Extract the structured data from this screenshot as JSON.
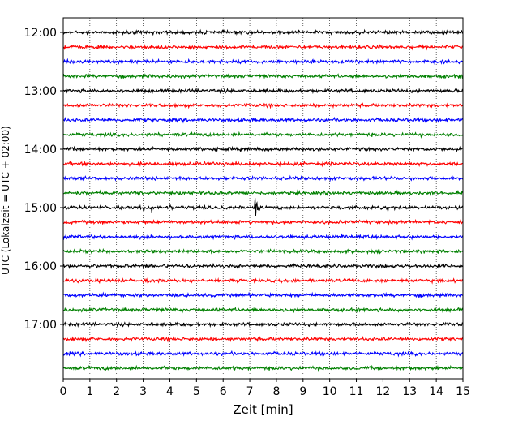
{
  "chart_data": {
    "type": "line",
    "subtype": "helicorder",
    "xlabel": "Zeit  [min]",
    "ylabel": "UTC (Lokalzeit = UTC + 02:00)",
    "xlim": [
      0,
      15
    ],
    "x_ticks": [
      0,
      1,
      2,
      3,
      4,
      5,
      6,
      7,
      8,
      9,
      10,
      11,
      12,
      13,
      14,
      15
    ],
    "y_tick_labels": [
      "12:00",
      "13:00",
      "14:00",
      "15:00",
      "16:00",
      "17:00"
    ],
    "vertical_grid": true,
    "grid_style": "dotted",
    "minutes_per_line": 15,
    "trace_colors": [
      "#000000",
      "#ff0000",
      "#0000ff",
      "#008000"
    ],
    "traces": [
      {
        "start": "12:00"
      },
      {
        "start": "12:15"
      },
      {
        "start": "12:30"
      },
      {
        "start": "12:45"
      },
      {
        "start": "13:00"
      },
      {
        "start": "13:15"
      },
      {
        "start": "13:30"
      },
      {
        "start": "13:45"
      },
      {
        "start": "14:00"
      },
      {
        "start": "14:15"
      },
      {
        "start": "14:30"
      },
      {
        "start": "14:45"
      },
      {
        "start": "15:00"
      },
      {
        "start": "15:15"
      },
      {
        "start": "15:30"
      },
      {
        "start": "15:45"
      },
      {
        "start": "16:00"
      },
      {
        "start": "16:15"
      },
      {
        "start": "16:30"
      },
      {
        "start": "16:45"
      },
      {
        "start": "17:00"
      },
      {
        "start": "17:15"
      },
      {
        "start": "17:30"
      },
      {
        "start": "17:45"
      }
    ],
    "events": [
      {
        "trace": "15:00",
        "minute": 7.2,
        "note": "large spike"
      }
    ]
  }
}
